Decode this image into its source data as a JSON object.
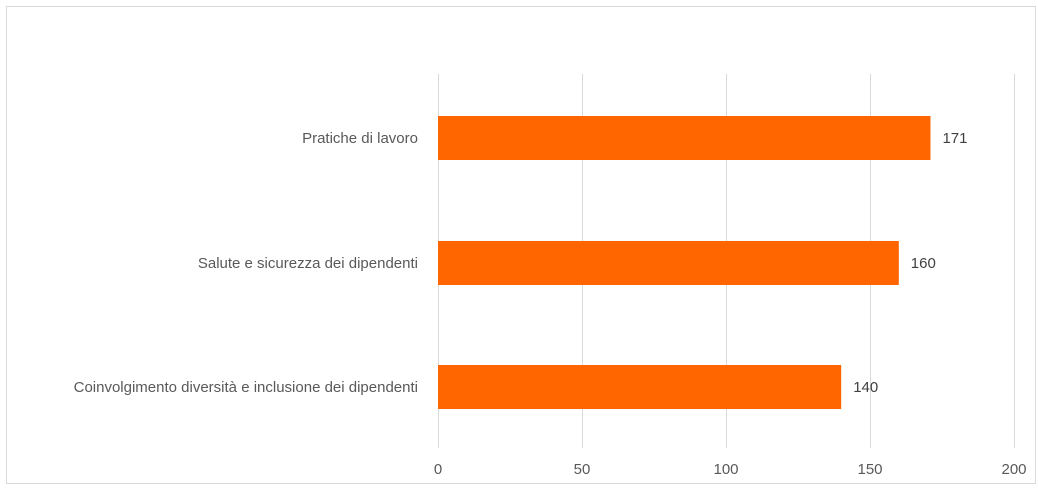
{
  "chart_data": {
    "type": "bar",
    "orientation": "horizontal",
    "categories": [
      "Pratiche di lavoro",
      "Salute e sicurezza dei dipendenti",
      "Coinvolgimento  diversità e inclusione dei dipendenti"
    ],
    "values": [
      171,
      160,
      140
    ],
    "data_labels": [
      "171",
      "160",
      "140"
    ],
    "xlim": [
      0,
      200
    ],
    "x_ticks": [
      0,
      50,
      100,
      150,
      200
    ],
    "x_tick_labels": [
      "0",
      "50",
      "100",
      "150",
      "200"
    ],
    "grid": true,
    "bar_color": "#ff6600",
    "title": "",
    "xlabel": "",
    "ylabel": ""
  }
}
